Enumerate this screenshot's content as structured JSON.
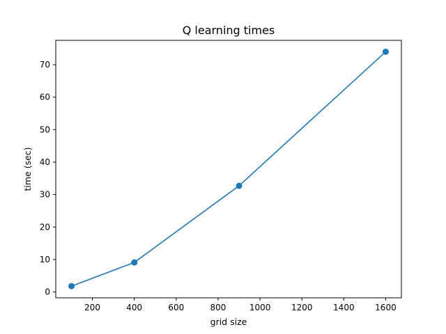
{
  "chart_data": {
    "type": "line",
    "title": "Q learning times",
    "xlabel": "grid size",
    "ylabel": "time (sec)",
    "xlim": [
      25,
      1675
    ],
    "ylim": [
      -1.8,
      77.5
    ],
    "xticks": [
      200,
      400,
      600,
      800,
      1000,
      1200,
      1400,
      1600
    ],
    "yticks": [
      0,
      10,
      20,
      30,
      40,
      50,
      60,
      70
    ],
    "grid": false,
    "series": [
      {
        "color": "#1f77b4",
        "marker": "circle",
        "x": [
          100,
          400,
          900,
          1600
        ],
        "y": [
          1.8,
          9.1,
          32.7,
          74.0
        ]
      }
    ]
  }
}
